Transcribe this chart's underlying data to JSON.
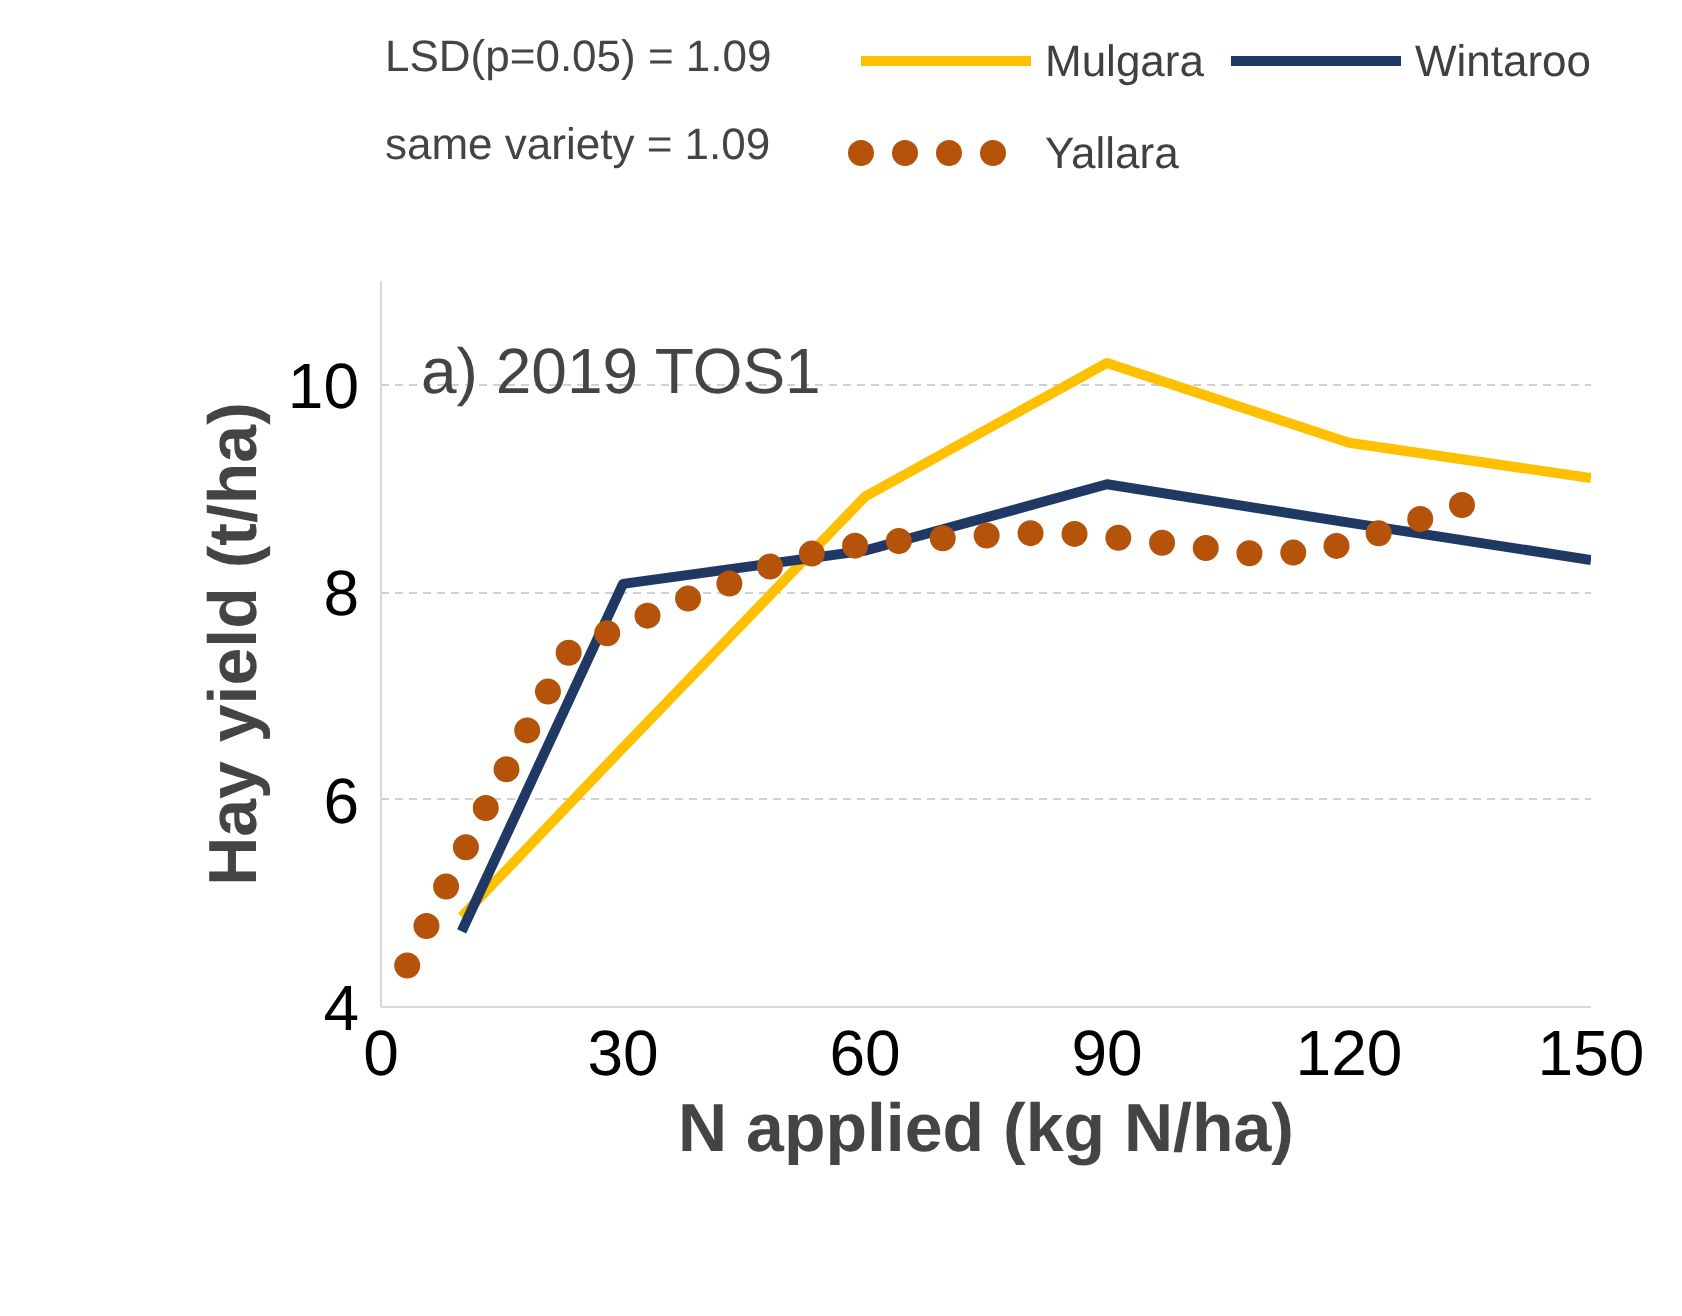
{
  "chart_data": {
    "type": "line",
    "xlabel": "N applied (kg N/ha)",
    "ylabel": "Hay yield (t/ha)",
    "annotations": [
      "LSD(p=0.05) = 1.09",
      "same variety = 1.09",
      "a) 2019 TOS1"
    ],
    "series": [
      {
        "name": "Mulgara",
        "color": "#ffc000",
        "x": [
          10,
          30,
          60,
          90,
          120,
          150
        ],
        "values": [
          4.87,
          6.5,
          8.92,
          10.21,
          9.44,
          9.1
        ],
        "line_style": "solid"
      },
      {
        "name": "Wintaroo",
        "color": "#203864",
        "x": [
          10,
          30,
          60,
          90,
          120,
          150
        ],
        "values": [
          4.73,
          8.08,
          8.4,
          9.04,
          8.67,
          8.31
        ],
        "line_style": "solid"
      },
      {
        "name": "Yallara",
        "color": "#b45309",
        "x": [
          3.25,
          6.5,
          9.75,
          13,
          16.5,
          20,
          23.5,
          30,
          36.75,
          43.75,
          50.75,
          57.75,
          65,
          72.25,
          79.5,
          87,
          94.25,
          101.75,
          109.25,
          116.5,
          123.75,
          130.5,
          137.5
        ],
        "values": [
          4.4,
          4.92,
          5.42,
          5.92,
          6.43,
          6.94,
          7.45,
          7.67,
          7.9,
          8.1,
          8.33,
          8.44,
          8.5,
          8.53,
          8.57,
          8.56,
          8.5,
          8.43,
          8.36,
          8.4,
          8.57,
          8.75,
          8.93
        ],
        "line_style": "dotted"
      }
    ],
    "xlim": [
      0,
      150
    ],
    "xticks": [
      0,
      30,
      60,
      90,
      120,
      150
    ],
    "ylim": [
      4,
      11
    ],
    "yticks": [
      4,
      6,
      8,
      10
    ],
    "grid": "y",
    "legend": "top"
  }
}
